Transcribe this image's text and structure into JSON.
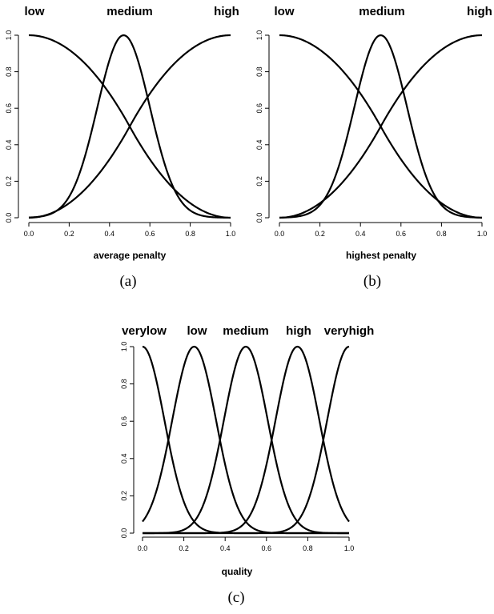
{
  "chart_data": [
    {
      "type": "line",
      "xlabel": "average penalty",
      "ylabel": "",
      "xlim": [
        0,
        1
      ],
      "ylim": [
        0,
        1
      ],
      "xticks": [
        "0.0",
        "0.2",
        "0.4",
        "0.6",
        "0.8",
        "1.0"
      ],
      "yticks": [
        "0.0",
        "0.2",
        "0.4",
        "0.6",
        "0.8",
        "1.0"
      ],
      "caption": "(a)",
      "series": [
        {
          "name": "low",
          "kind": "zmf",
          "params": [
            0,
            1
          ]
        },
        {
          "name": "medium",
          "kind": "gauss",
          "params": [
            0.47,
            0.13
          ]
        },
        {
          "name": "high",
          "kind": "smf",
          "params": [
            0,
            1
          ]
        }
      ]
    },
    {
      "type": "line",
      "xlabel": "highest penalty",
      "ylabel": "",
      "xlim": [
        0,
        1
      ],
      "ylim": [
        0,
        1
      ],
      "xticks": [
        "0.0",
        "0.2",
        "0.4",
        "0.6",
        "0.8",
        "1.0"
      ],
      "yticks": [
        "0.0",
        "0.2",
        "0.4",
        "0.6",
        "0.8",
        "1.0"
      ],
      "caption": "(b)",
      "series": [
        {
          "name": "low",
          "kind": "zmf",
          "params": [
            0,
            1
          ]
        },
        {
          "name": "medium",
          "kind": "gauss",
          "params": [
            0.5,
            0.13
          ]
        },
        {
          "name": "high",
          "kind": "smf",
          "params": [
            0,
            1
          ]
        }
      ]
    },
    {
      "type": "line",
      "xlabel": "quality",
      "ylabel": "",
      "xlim": [
        0,
        1
      ],
      "ylim": [
        0,
        1
      ],
      "xticks": [
        "0.0",
        "0.2",
        "0.4",
        "0.6",
        "0.8",
        "1.0"
      ],
      "yticks": [
        "0.0",
        "0.2",
        "0.4",
        "0.6",
        "0.8",
        "1.0"
      ],
      "caption": "(c)",
      "series": [
        {
          "name": "verylow",
          "kind": "gauss",
          "params": [
            0,
            0.106
          ]
        },
        {
          "name": "low",
          "kind": "gauss",
          "params": [
            0.25,
            0.106
          ]
        },
        {
          "name": "medium",
          "kind": "gauss",
          "params": [
            0.5,
            0.106
          ]
        },
        {
          "name": "high",
          "kind": "gauss",
          "params": [
            0.75,
            0.106
          ]
        },
        {
          "name": "veryhigh",
          "kind": "gauss",
          "params": [
            1,
            0.106
          ]
        }
      ]
    }
  ]
}
